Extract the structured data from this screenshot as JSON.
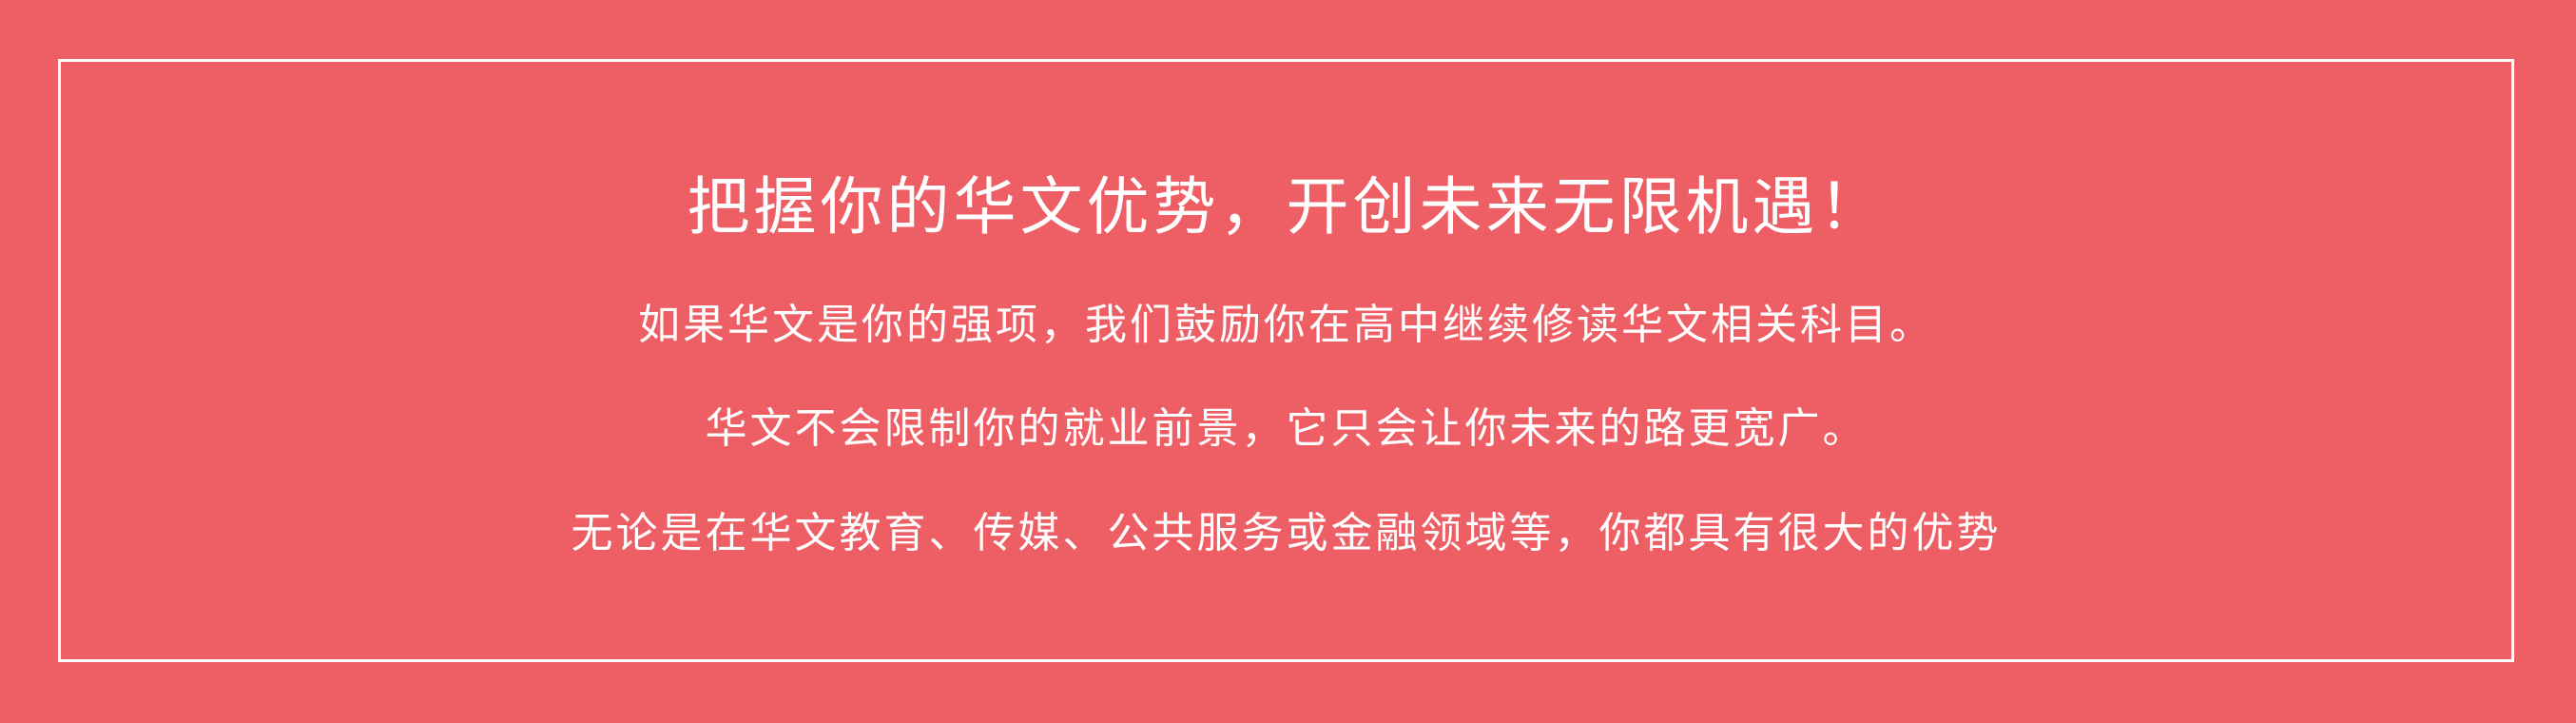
{
  "colors": {
    "background": "#ee5f65",
    "frame": "#ffffff",
    "text": "#ffffff"
  },
  "banner": {
    "headline": "把握你的华文优势，开创未来无限机遇！",
    "paragraphs": [
      "如果华文是你的强项，我们鼓励你在高中继续修读华文相关科目。",
      "华文不会限制你的就业前景，它只会让你未来的路更宽广。",
      "无论是在华文教育、传媒、公共服务或金融领域等，你都具有很大的优势"
    ]
  }
}
